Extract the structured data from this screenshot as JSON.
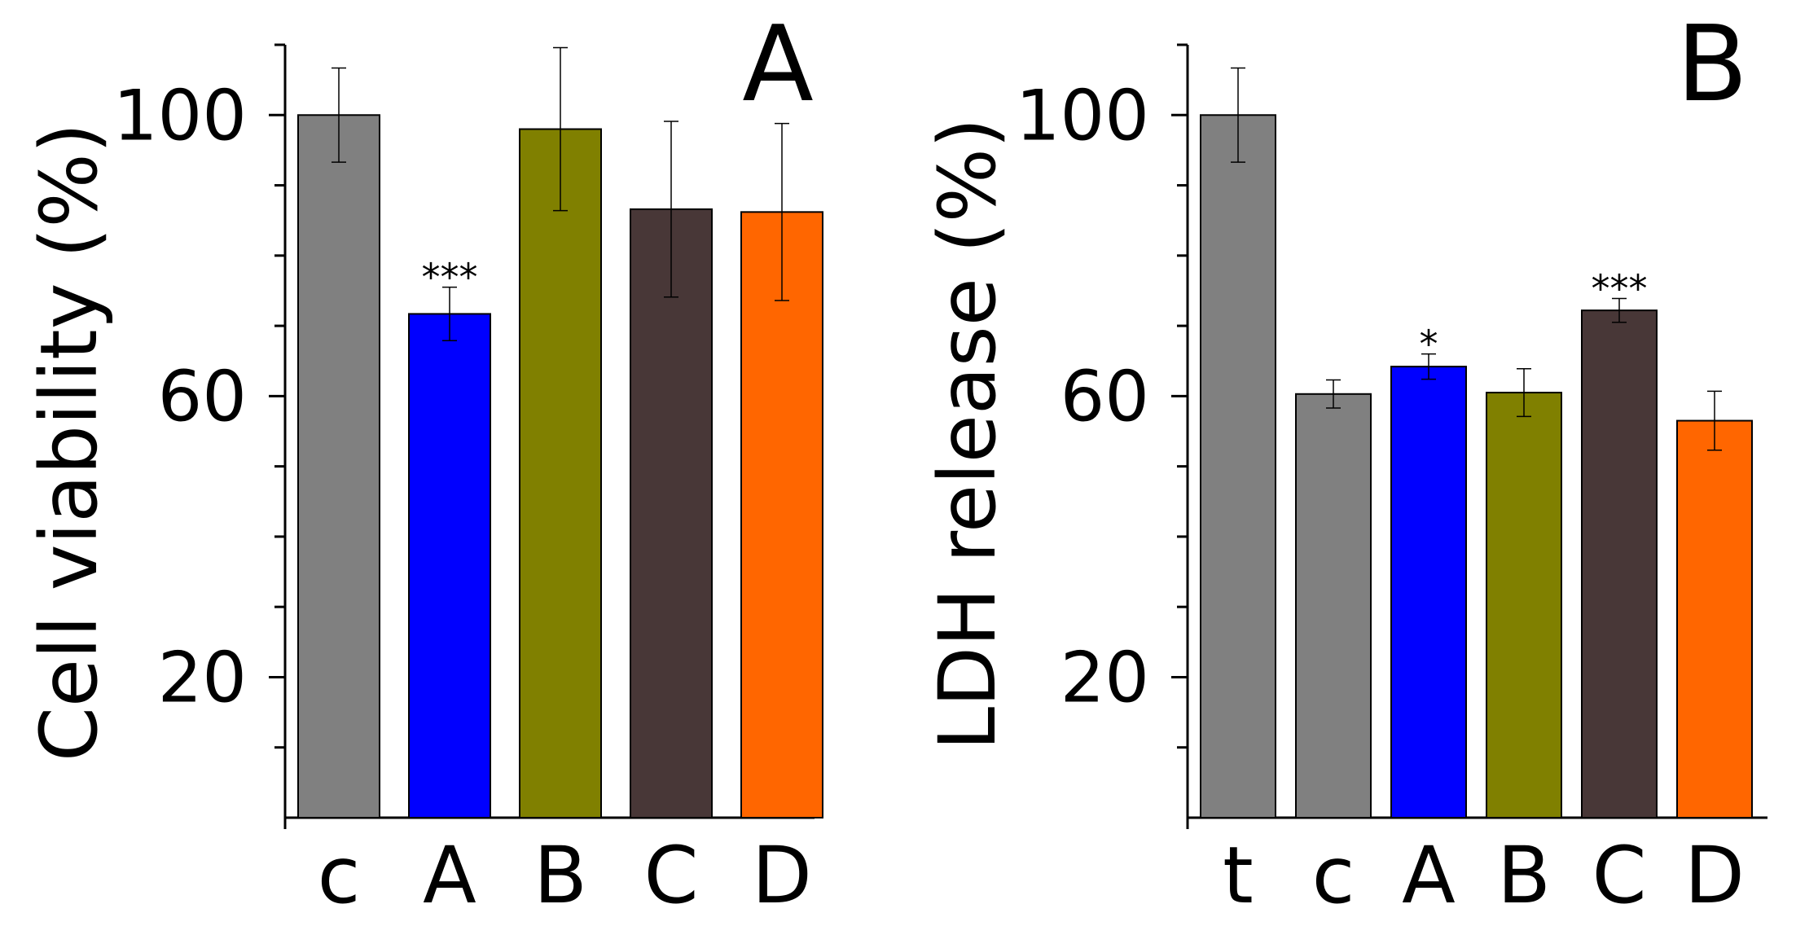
{
  "figure": {
    "background": "#ffffff",
    "panel_count": 2
  },
  "chart_data": [
    {
      "type": "bar",
      "panel_label": "A",
      "title": "",
      "xlabel": "",
      "ylabel": "Cell viability (%)",
      "ylim": [
        0,
        110
      ],
      "yticks": [
        20,
        60,
        100
      ],
      "ytick_labels": [
        "20",
        "60",
        "100"
      ],
      "yminor_ticks": [
        10,
        30,
        40,
        50,
        70,
        80,
        90,
        110
      ],
      "grid": false,
      "legend": "none",
      "categories": [
        "c",
        "A",
        "B",
        "C",
        "D"
      ],
      "values": [
        100,
        71.7,
        98,
        86.6,
        86.2
      ],
      "errors": [
        6.7,
        3.8,
        11.6,
        12.5,
        12.6
      ],
      "colors": [
        "#808080",
        "#0000ff",
        "#808000",
        "#483737",
        "#ff6600"
      ],
      "annotations": [
        "",
        "***",
        "",
        "",
        ""
      ]
    },
    {
      "type": "bar",
      "panel_label": "B",
      "title": "",
      "xlabel": "",
      "ylabel": "LDH release (%)",
      "ylim": [
        0,
        110
      ],
      "yticks": [
        20,
        60,
        100
      ],
      "ytick_labels": [
        "20",
        "60",
        "100"
      ],
      "yminor_ticks": [
        10,
        30,
        40,
        50,
        70,
        80,
        90,
        110
      ],
      "grid": false,
      "legend": "none",
      "categories": [
        "t",
        "c",
        "A",
        "B",
        "C",
        "D"
      ],
      "values": [
        100,
        60.3,
        64.2,
        60.5,
        72.2,
        56.5
      ],
      "errors": [
        6.7,
        2,
        1.8,
        3.4,
        1.7,
        4.2
      ],
      "colors": [
        "#808080",
        "#808080",
        "#0000ff",
        "#808000",
        "#483737",
        "#ff6600"
      ],
      "annotations": [
        "",
        "",
        "*",
        "",
        "***",
        ""
      ]
    }
  ]
}
